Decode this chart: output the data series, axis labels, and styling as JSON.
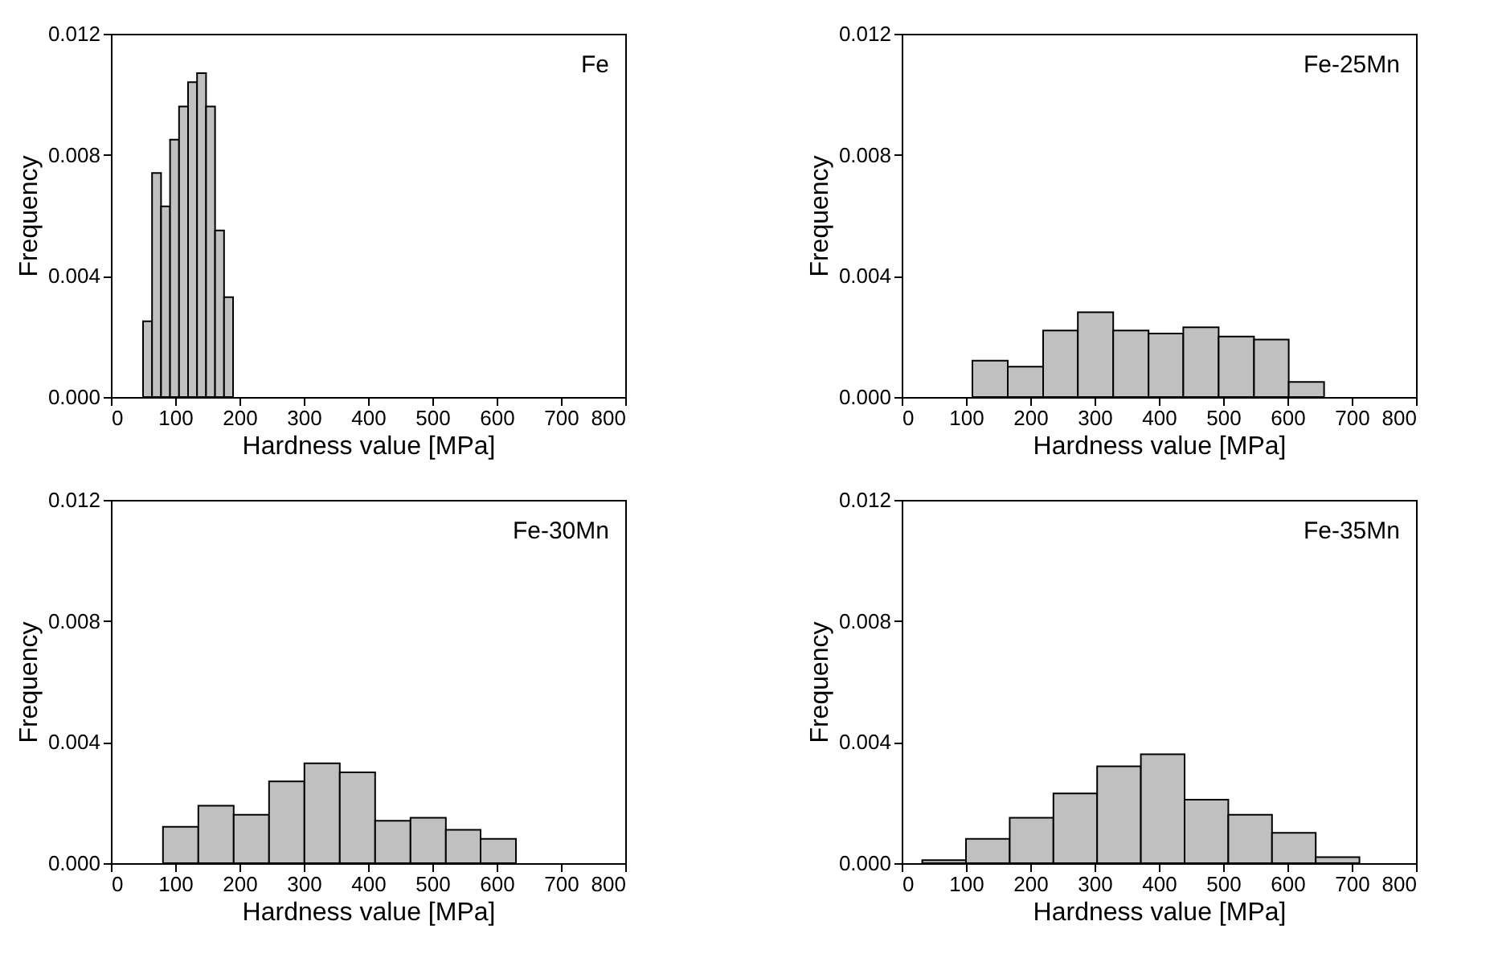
{
  "chart_data": [
    {
      "type": "histogram",
      "annotations": [
        "Fe"
      ],
      "xlabel": "Hardness value [MPa]",
      "ylabel": "Frequency",
      "color": "#c0c0c0",
      "bins": [
        50,
        64,
        78,
        92,
        106,
        120,
        134,
        148,
        162,
        176,
        190
      ],
      "values": [
        0.0025,
        0.0074,
        0.0063,
        0.0085,
        0.0096,
        0.0104,
        0.0107,
        0.0096,
        0.0055,
        0.0033
      ],
      "xlim": [
        0,
        800
      ],
      "xticks": [
        0,
        100,
        200,
        300,
        400,
        500,
        600,
        700,
        800
      ],
      "ylim": [
        0,
        0.012
      ],
      "yticks": [
        {
          "value": 0,
          "label": "0.000"
        },
        {
          "value": 0.004,
          "label": "0.004"
        },
        {
          "value": 0.008,
          "label": "0.008"
        },
        {
          "value": 0.012,
          "label": "0.012"
        }
      ],
      "grid": false
    },
    {
      "type": "histogram",
      "annotations": [
        "Fe-25Mn"
      ],
      "xlabel": "Hardness value [MPa]",
      "ylabel": "Frequency",
      "color": "#c0c0c0",
      "bins": [
        110,
        165,
        220,
        274,
        329,
        384,
        438,
        493,
        548,
        602,
        657
      ],
      "values": [
        0.0012,
        0.001,
        0.0022,
        0.0028,
        0.0022,
        0.0021,
        0.0023,
        0.002,
        0.0019,
        0.0005
      ],
      "xlim": [
        0,
        800
      ],
      "xticks": [
        0,
        100,
        200,
        300,
        400,
        500,
        600,
        700,
        800
      ],
      "ylim": [
        0,
        0.012
      ],
      "yticks": [
        {
          "value": 0,
          "label": "0.000"
        },
        {
          "value": 0.004,
          "label": "0.004"
        },
        {
          "value": 0.008,
          "label": "0.008"
        },
        {
          "value": 0.012,
          "label": "0.012"
        }
      ],
      "grid": false
    },
    {
      "type": "histogram",
      "annotations": [
        "Fe-30Mn"
      ],
      "xlabel": "Hardness value [MPa]",
      "ylabel": "Frequency",
      "color": "#c0c0c0",
      "bins": [
        81,
        136,
        191,
        246,
        301,
        356,
        411,
        466,
        521,
        575,
        630
      ],
      "values": [
        0.0012,
        0.0019,
        0.0016,
        0.0027,
        0.0033,
        0.003,
        0.0014,
        0.0015,
        0.0011,
        0.0008
      ],
      "xlim": [
        0,
        800
      ],
      "xticks": [
        0,
        100,
        200,
        300,
        400,
        500,
        600,
        700,
        800
      ],
      "ylim": [
        0,
        0.012
      ],
      "yticks": [
        {
          "value": 0,
          "label": "0.000"
        },
        {
          "value": 0.004,
          "label": "0.004"
        },
        {
          "value": 0.008,
          "label": "0.008"
        },
        {
          "value": 0.012,
          "label": "0.012"
        }
      ],
      "grid": false
    },
    {
      "type": "histogram",
      "annotations": [
        "Fe-35Mn"
      ],
      "xlabel": "Hardness value [MPa]",
      "ylabel": "Frequency",
      "color": "#c0c0c0",
      "bins": [
        32,
        100,
        168,
        236,
        304,
        372,
        440,
        508,
        576,
        644,
        712
      ],
      "values": [
        0.0001,
        0.0008,
        0.0015,
        0.0023,
        0.0032,
        0.0036,
        0.0021,
        0.0016,
        0.001,
        0.0002
      ],
      "xlim": [
        0,
        800
      ],
      "xticks": [
        0,
        100,
        200,
        300,
        400,
        500,
        600,
        700,
        800
      ],
      "ylim": [
        0,
        0.012
      ],
      "yticks": [
        {
          "value": 0,
          "label": "0.000"
        },
        {
          "value": 0.004,
          "label": "0.004"
        },
        {
          "value": 0.008,
          "label": "0.008"
        },
        {
          "value": 0.012,
          "label": "0.012"
        }
      ],
      "grid": false
    }
  ]
}
